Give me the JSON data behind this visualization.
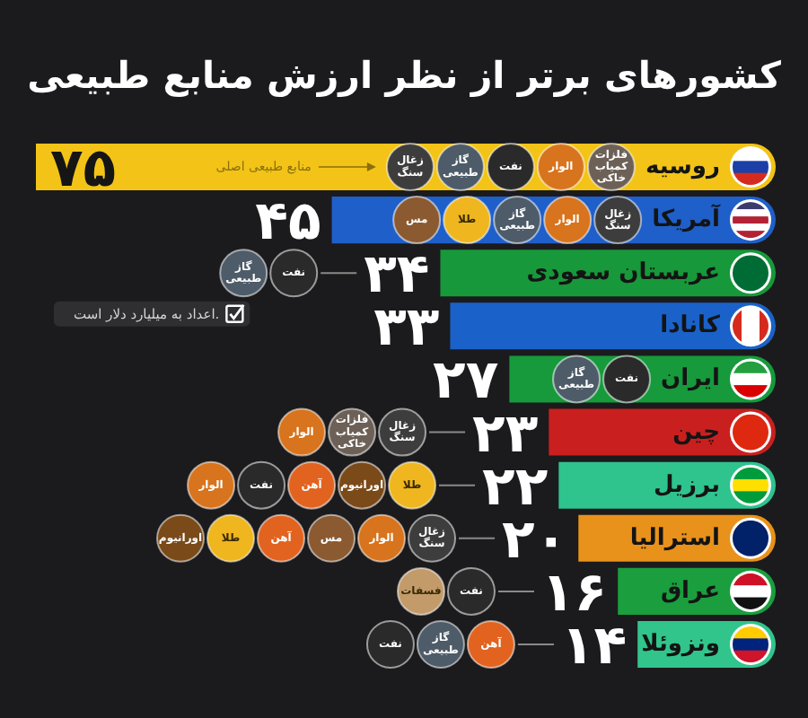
{
  "chart_data": {
    "type": "bar",
    "orientation": "horizontal",
    "title": "کشورهای برتر از نظر ارزش منابع طبیعی",
    "categories": [
      "روسیه",
      "آمریکا",
      "عربستان سعودی",
      "کانادا",
      "ایران",
      "چین",
      "برزیل",
      "استرالیا",
      "عراق",
      "ونزوئلا"
    ],
    "values": [
      75,
      45,
      34,
      33,
      27,
      23,
      22,
      20,
      16,
      14
    ],
    "colors": [
      "#f3c417",
      "#1f5fc9",
      "#17983a",
      "#1a62c9",
      "#169a3c",
      "#c9201f",
      "#2fc38e",
      "#e8921b",
      "#1a9e3e",
      "#31c58c"
    ],
    "value_labels": [
      "۷۵",
      "۴۵",
      "۳۴",
      "۳۳",
      "۲۷",
      "۲۳",
      "۲۲",
      "۲۰",
      "۱۶",
      "۱۴"
    ],
    "annotations": [
      "منابع طبیعی اصلی",
      "اعداد به میلیارد دلار است.",
      {
        "text": "فلزات کمیاب خاکی",
        "y": "روسیه"
      },
      {
        "text": "الوار",
        "y": "روسیه"
      },
      {
        "text": "نفت",
        "y": "روسیه"
      },
      {
        "text": "گاز طبیعی",
        "y": "روسیه"
      },
      {
        "text": "زغال سنگ",
        "y": "روسیه"
      },
      {
        "text": "زغال سنگ",
        "y": "آمریکا"
      },
      {
        "text": "الوار",
        "y": "آمریکا"
      },
      {
        "text": "گاز طبیعی",
        "y": "آمریکا"
      },
      {
        "text": "طلا",
        "y": "آمریکا"
      },
      {
        "text": "مس",
        "y": "آمریکا"
      },
      {
        "text": "نفت",
        "y": "عربستان سعودی"
      },
      {
        "text": "گاز طبیعی",
        "y": "عربستان سعودی"
      },
      {
        "text": "نفت",
        "y": "ایران"
      },
      {
        "text": "گاز طبیعی",
        "y": "ایران"
      },
      {
        "text": "زغال سنگ",
        "y": "چین"
      },
      {
        "text": "فلزات کمیاب خاکی",
        "y": "چین"
      },
      {
        "text": "الوار",
        "y": "چین"
      },
      {
        "text": "طلا",
        "y": "برزیل"
      },
      {
        "text": "اورانیوم",
        "y": "برزیل"
      },
      {
        "text": "آهن",
        "y": "برزیل"
      },
      {
        "text": "نفت",
        "y": "برزیل"
      },
      {
        "text": "الوار",
        "y": "برزیل"
      },
      {
        "text": "زغال سنگ",
        "y": "استرالیا"
      },
      {
        "text": "الوار",
        "y": "استرالیا"
      },
      {
        "text": "مس",
        "y": "استرالیا"
      },
      {
        "text": "آهن",
        "y": "استرالیا"
      },
      {
        "text": "طلا",
        "y": "استرالیا"
      },
      {
        "text": "اورانیوم",
        "y": "استرالیا"
      },
      {
        "text": "نفت",
        "y": "عراق"
      },
      {
        "text": "فسفات",
        "y": "عراق"
      },
      {
        "text": "آهن",
        "y": "ونزوئلا"
      },
      {
        "text": "گاز طبیعی",
        "y": "ونزوئلا"
      },
      {
        "text": "نفت",
        "y": "ونزوئلا"
      }
    ]
  }
}
